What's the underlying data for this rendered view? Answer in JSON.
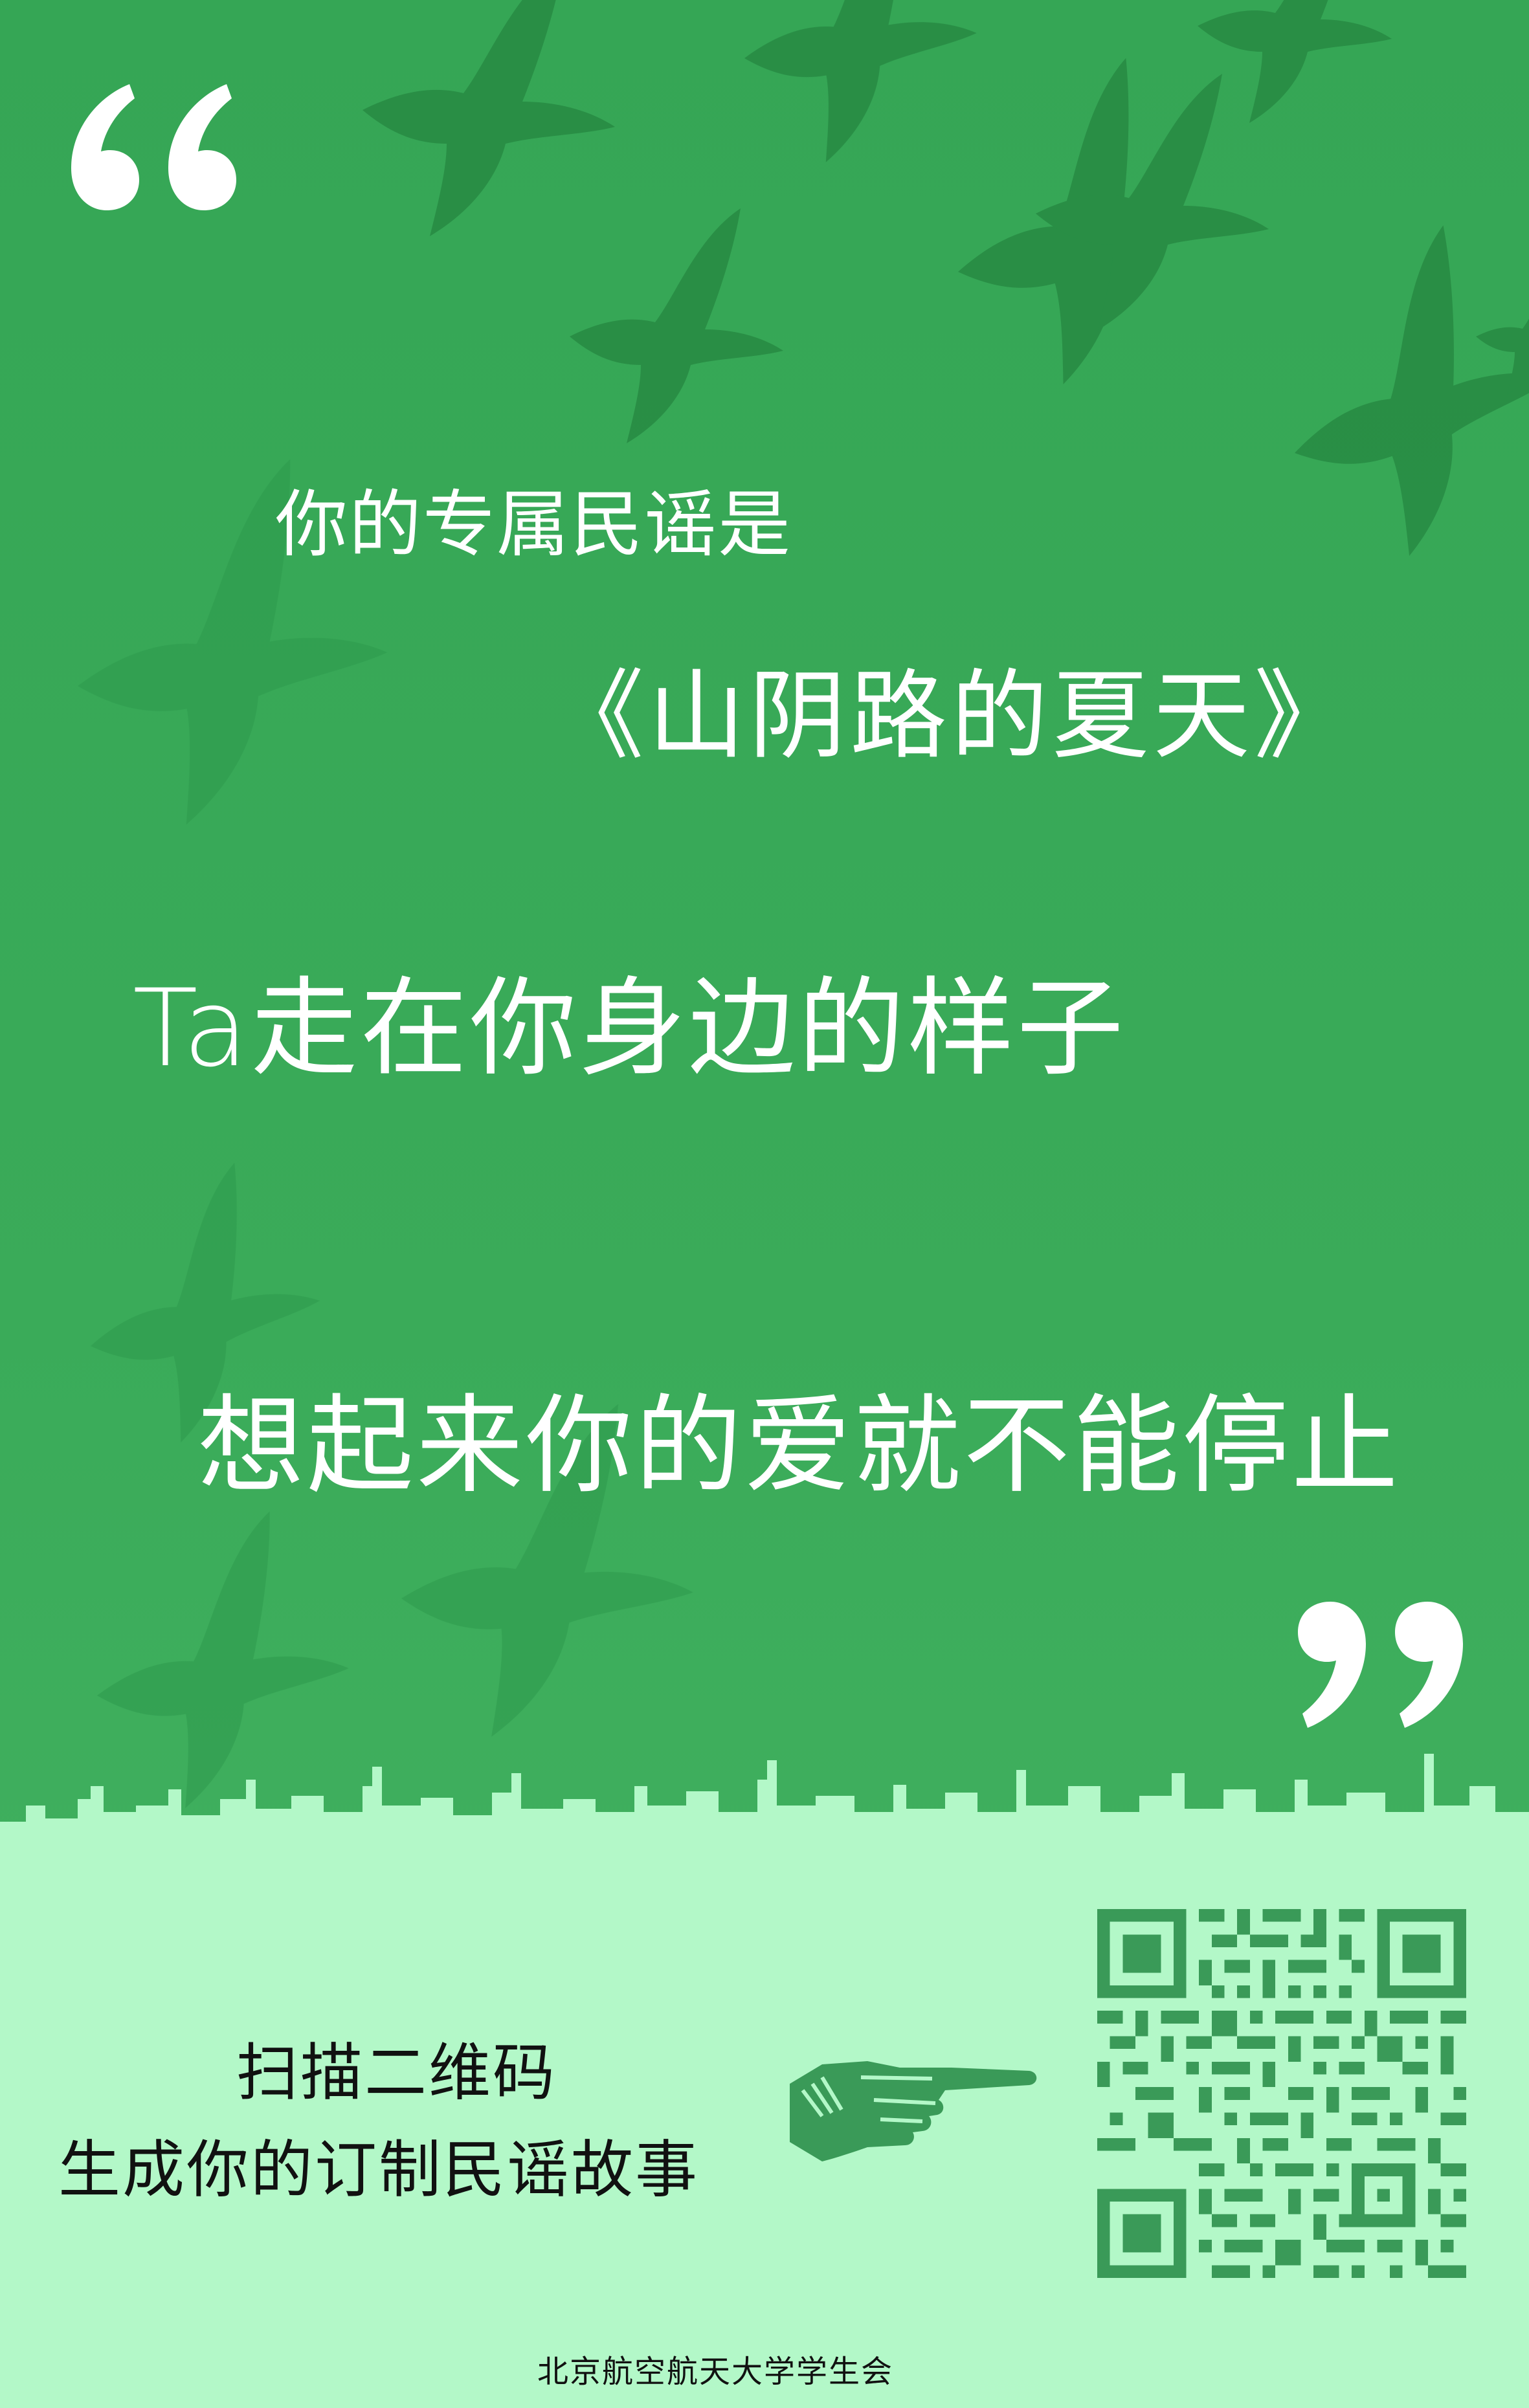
{
  "poster": {
    "intro": "你的专属民谣是",
    "song_title": "《山阴路的夏天》",
    "lyric_line_1": "Ta走在你身边的样子",
    "lyric_line_2": "想起来你的爱就不能停止",
    "scan_prompt_line_1": "扫描二维码",
    "scan_prompt_line_2": "生成你的订制民谣故事",
    "footer": "北京航空航天大学学生会"
  },
  "icons": {
    "open_quote": "left-double-quote-icon",
    "close_quote": "right-double-quote-icon",
    "hand": "pointing-hand-icon",
    "qr": "qr-code",
    "birds": "flying-birds-illustration"
  },
  "colors": {
    "background_green": "#3aab59",
    "bird_green": "#1f7a3a",
    "bottom_mint": "#b3f8c8",
    "qr_green": "#3a9a58",
    "text_white": "#ffffff",
    "text_dark": "#111111"
  }
}
